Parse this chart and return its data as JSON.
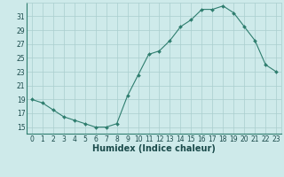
{
  "x": [
    0,
    1,
    2,
    3,
    4,
    5,
    6,
    7,
    8,
    9,
    10,
    11,
    12,
    13,
    14,
    15,
    16,
    17,
    18,
    19,
    20,
    21,
    22,
    23
  ],
  "y": [
    19,
    18.5,
    17.5,
    16.5,
    16,
    15.5,
    15,
    15,
    15.5,
    19.5,
    22.5,
    25.5,
    26,
    27.5,
    29.5,
    30.5,
    32,
    32,
    32.5,
    31.5,
    29.5,
    27.5,
    24,
    23
  ],
  "line_color": "#2e7d6e",
  "marker": "D",
  "marker_size": 2.0,
  "bg_color": "#ceeaea",
  "grid_color": "#aacece",
  "xlabel": "Humidex (Indice chaleur)",
  "xlim": [
    -0.5,
    23.5
  ],
  "ylim": [
    14,
    33
  ],
  "yticks": [
    15,
    17,
    19,
    21,
    23,
    25,
    27,
    29,
    31
  ],
  "xticks": [
    0,
    1,
    2,
    3,
    4,
    5,
    6,
    7,
    8,
    9,
    10,
    11,
    12,
    13,
    14,
    15,
    16,
    17,
    18,
    19,
    20,
    21,
    22,
    23
  ],
  "tick_fontsize": 5.5,
  "xlabel_fontsize": 7.0
}
